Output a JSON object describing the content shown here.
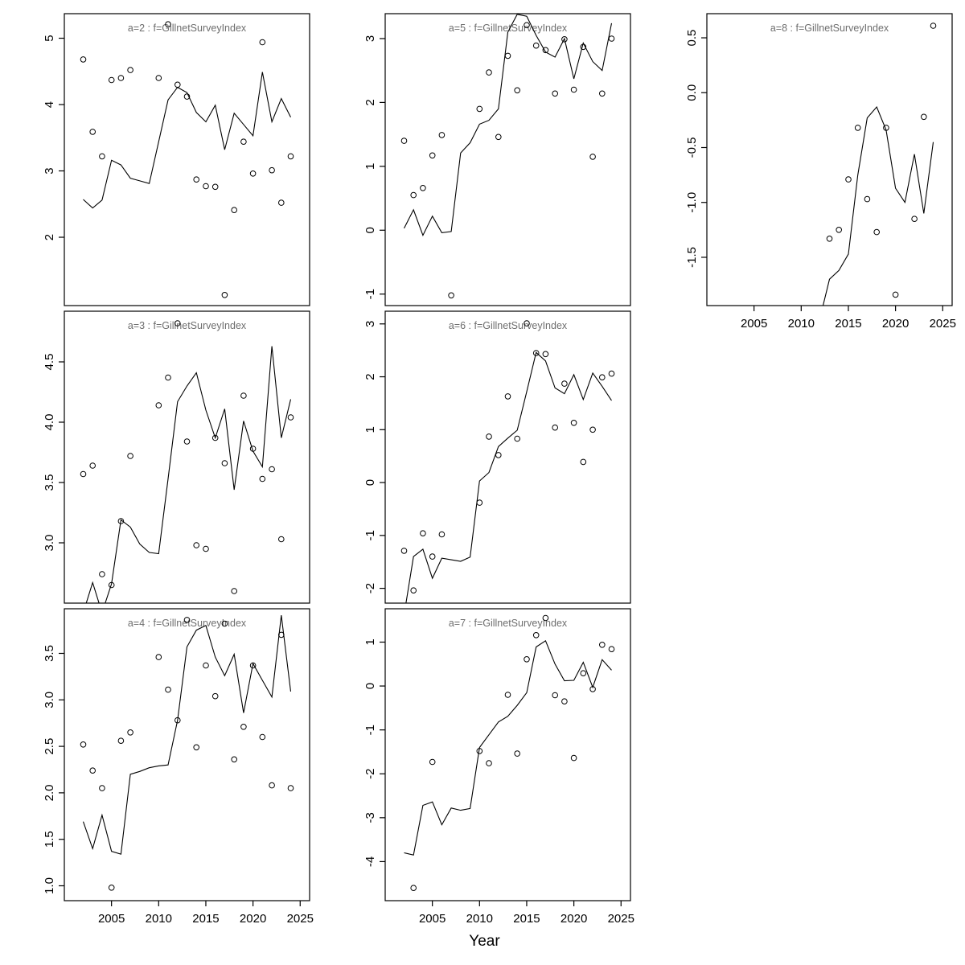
{
  "figure": {
    "xlabel": "Year",
    "background": "#ffffff",
    "line_color": "#000000",
    "point_color": "#000000",
    "title_color": "#6e6e6e",
    "axis_color": "#000000",
    "xlim": [
      2000,
      2026
    ],
    "x_ticks": [
      2005,
      2010,
      2015,
      2020,
      2025
    ],
    "x_tick_labels": [
      "2005",
      "2010",
      "2015",
      "2020",
      "2025"
    ],
    "legend": "none",
    "grid": "off"
  },
  "chart_data": [
    {
      "type": "line",
      "id": "a2",
      "row": 0,
      "col": 0,
      "title": "a=2  :  f=GillnetSurveyIndex",
      "ylim": [
        0.97,
        5.37
      ],
      "yticks": [
        2,
        3,
        4,
        5
      ],
      "ytick_labels": [
        "2",
        "3",
        "4",
        "5"
      ],
      "show_x_axis": false,
      "series": [
        {
          "name": "fitted-line",
          "style": "line",
          "x": [
            2002,
            2003,
            2004,
            2005,
            2006,
            2007,
            2008,
            2009,
            2010,
            2011,
            2012,
            2013,
            2014,
            2015,
            2016,
            2017,
            2018,
            2019,
            2020,
            2021,
            2022,
            2023,
            2024
          ],
          "y": [
            2.57,
            2.44,
            2.56,
            3.16,
            3.09,
            2.89,
            2.85,
            2.81,
            3.44,
            4.07,
            4.26,
            4.18,
            3.88,
            3.74,
            3.99,
            3.32,
            3.87,
            3.7,
            3.53,
            4.49,
            3.74,
            4.09,
            3.81
          ]
        },
        {
          "name": "observed-points",
          "style": "points",
          "x": [
            2002,
            2003,
            2004,
            2005,
            2006,
            2007,
            2010,
            2011,
            2012,
            2013,
            2014,
            2015,
            2016,
            2017,
            2018,
            2019,
            2020,
            2021,
            2022,
            2023,
            2024
          ],
          "y": [
            4.68,
            3.59,
            3.22,
            4.37,
            4.4,
            4.52,
            4.4,
            5.21,
            4.3,
            4.12,
            2.87,
            2.77,
            2.76,
            1.13,
            2.41,
            3.44,
            2.96,
            4.94,
            3.01,
            2.52,
            3.22
          ]
        }
      ]
    },
    {
      "type": "line",
      "id": "a5",
      "row": 0,
      "col": 1,
      "title": "a=5  :  f=GillnetSurveyIndex",
      "ylim": [
        -1.18,
        3.39
      ],
      "yticks": [
        -1,
        0,
        1,
        2,
        3
      ],
      "ytick_labels": [
        "-1",
        "0",
        "1",
        "2",
        "3"
      ],
      "show_x_axis": false,
      "series": [
        {
          "name": "fitted-line",
          "style": "line",
          "x": [
            2002,
            2003,
            2004,
            2005,
            2006,
            2007,
            2008,
            2009,
            2010,
            2011,
            2012,
            2013,
            2014,
            2015,
            2016,
            2017,
            2018,
            2019,
            2020,
            2021,
            2022,
            2023,
            2024
          ],
          "y": [
            0.03,
            0.32,
            -0.08,
            0.22,
            -0.04,
            -0.02,
            1.21,
            1.37,
            1.66,
            1.72,
            1.9,
            3.1,
            3.38,
            3.35,
            3.05,
            2.79,
            2.71,
            3.0,
            2.37,
            2.93,
            2.64,
            2.5,
            3.24
          ]
        },
        {
          "name": "observed-points",
          "style": "points",
          "x": [
            2002,
            2003,
            2004,
            2005,
            2006,
            2007,
            2010,
            2011,
            2012,
            2013,
            2014,
            2015,
            2016,
            2017,
            2018,
            2019,
            2020,
            2021,
            2022,
            2023,
            2024
          ],
          "y": [
            1.4,
            0.55,
            0.66,
            1.17,
            1.49,
            -1.02,
            1.9,
            2.47,
            1.46,
            2.73,
            2.19,
            3.21,
            2.89,
            2.82,
            2.14,
            2.99,
            2.2,
            2.87,
            1.15,
            2.14,
            3.0
          ]
        }
      ]
    },
    {
      "type": "line",
      "id": "a8",
      "row": 0,
      "col": 2,
      "title": "a=8  :  f=GillnetSurveyIndex",
      "ylim": [
        -1.94,
        0.72
      ],
      "yticks": [
        -1.5,
        -1.0,
        -0.5,
        0.0,
        0.5
      ],
      "ytick_labels": [
        "-1.5",
        "-1.0",
        "-0.5",
        "0.0",
        "0.5"
      ],
      "show_x_axis": true,
      "series": [
        {
          "name": "fitted-line",
          "style": "line",
          "x": [
            2012,
            2013,
            2014,
            2015,
            2016,
            2017,
            2018,
            2019,
            2020,
            2021,
            2022,
            2023,
            2024
          ],
          "y": [
            -2.05,
            -1.7,
            -1.62,
            -1.47,
            -0.75,
            -0.23,
            -0.13,
            -0.34,
            -0.87,
            -1.0,
            -0.56,
            -1.1,
            -0.45
          ]
        },
        {
          "name": "observed-points",
          "style": "points",
          "x": [
            2013,
            2014,
            2015,
            2016,
            2017,
            2018,
            2019,
            2020,
            2022,
            2023,
            2024
          ],
          "y": [
            -1.33,
            -1.25,
            -0.79,
            -0.32,
            -0.97,
            -1.27,
            -0.32,
            -1.84,
            -1.15,
            -0.22,
            0.61
          ]
        }
      ]
    },
    {
      "type": "line",
      "id": "a3",
      "row": 1,
      "col": 0,
      "title": "a=3  :  f=GillnetSurveyIndex",
      "ylim": [
        2.5,
        4.92
      ],
      "yticks": [
        3.0,
        3.5,
        4.0,
        4.5
      ],
      "ytick_labels": [
        "3.0",
        "3.5",
        "4.0",
        "4.5"
      ],
      "show_x_axis": false,
      "series": [
        {
          "name": "fitted-line",
          "style": "line",
          "x": [
            2002,
            2003,
            2004,
            2005,
            2006,
            2007,
            2008,
            2009,
            2010,
            2011,
            2012,
            2013,
            2014,
            2015,
            2016,
            2017,
            2018,
            2019,
            2020,
            2021,
            2022,
            2023,
            2024
          ],
          "y": [
            2.42,
            2.67,
            2.42,
            2.66,
            3.19,
            3.13,
            2.99,
            2.92,
            2.91,
            3.53,
            4.17,
            4.3,
            4.41,
            4.1,
            3.87,
            4.11,
            3.44,
            4.01,
            3.76,
            3.63,
            4.63,
            3.87,
            4.19
          ]
        },
        {
          "name": "observed-points",
          "style": "points",
          "x": [
            2002,
            2003,
            2004,
            2005,
            2006,
            2007,
            2010,
            2011,
            2012,
            2013,
            2014,
            2015,
            2016,
            2017,
            2018,
            2019,
            2020,
            2021,
            2022,
            2023,
            2024
          ],
          "y": [
            3.57,
            3.64,
            2.74,
            2.65,
            3.18,
            3.72,
            4.14,
            4.37,
            4.82,
            3.84,
            2.98,
            2.95,
            3.87,
            3.66,
            2.6,
            4.22,
            3.78,
            3.53,
            3.61,
            3.03,
            4.04
          ]
        }
      ]
    },
    {
      "type": "line",
      "id": "a6",
      "row": 1,
      "col": 1,
      "title": "a=6  :  f=GillnetSurveyIndex",
      "ylim": [
        -2.28,
        3.24
      ],
      "yticks": [
        -2,
        -1,
        0,
        1,
        2,
        3
      ],
      "ytick_labels": [
        "-2",
        "-1",
        "0",
        "1",
        "2",
        "3"
      ],
      "show_x_axis": false,
      "series": [
        {
          "name": "fitted-line",
          "style": "line",
          "x": [
            2002,
            2003,
            2004,
            2005,
            2006,
            2007,
            2008,
            2009,
            2010,
            2011,
            2012,
            2013,
            2014,
            2015,
            2016,
            2017,
            2018,
            2019,
            2020,
            2021,
            2022,
            2023,
            2024
          ],
          "y": [
            -2.5,
            -1.4,
            -1.26,
            -1.81,
            -1.43,
            -1.46,
            -1.49,
            -1.41,
            0.03,
            0.19,
            0.68,
            0.84,
            0.99,
            1.72,
            2.46,
            2.3,
            1.79,
            1.68,
            2.04,
            1.57,
            2.07,
            1.82,
            1.55
          ]
        },
        {
          "name": "observed-points",
          "style": "points",
          "x": [
            2002,
            2003,
            2004,
            2005,
            2006,
            2010,
            2011,
            2012,
            2013,
            2014,
            2015,
            2016,
            2017,
            2018,
            2019,
            2020,
            2021,
            2022,
            2023,
            2024
          ],
          "y": [
            -1.29,
            -2.04,
            -0.96,
            -1.4,
            -0.98,
            -0.38,
            0.87,
            0.52,
            1.63,
            0.83,
            3.01,
            2.45,
            2.43,
            1.04,
            1.87,
            1.13,
            0.39,
            1.0,
            1.99,
            2.06
          ]
        }
      ]
    },
    {
      "type": "line",
      "id": "a4",
      "row": 2,
      "col": 0,
      "title": "a=4  :  f=GillnetSurveyIndex",
      "ylim": [
        0.84,
        3.98
      ],
      "yticks": [
        1.0,
        1.5,
        2.0,
        2.5,
        3.0,
        3.5
      ],
      "ytick_labels": [
        "1.0",
        "1.5",
        "2.0",
        "2.5",
        "3.0",
        "3.5"
      ],
      "show_x_axis": true,
      "series": [
        {
          "name": "fitted-line",
          "style": "line",
          "x": [
            2002,
            2003,
            2004,
            2005,
            2006,
            2007,
            2008,
            2009,
            2010,
            2011,
            2012,
            2013,
            2014,
            2015,
            2016,
            2017,
            2018,
            2019,
            2020,
            2021,
            2022,
            2023,
            2024
          ],
          "y": [
            1.69,
            1.4,
            1.76,
            1.37,
            1.34,
            2.2,
            2.23,
            2.27,
            2.29,
            2.3,
            2.78,
            3.57,
            3.75,
            3.8,
            3.46,
            3.26,
            3.49,
            2.86,
            3.39,
            3.21,
            3.03,
            3.91,
            3.09
          ]
        },
        {
          "name": "observed-points",
          "style": "points",
          "x": [
            2002,
            2003,
            2004,
            2005,
            2006,
            2007,
            2010,
            2011,
            2012,
            2013,
            2014,
            2015,
            2016,
            2017,
            2018,
            2019,
            2020,
            2021,
            2022,
            2023,
            2024
          ],
          "y": [
            2.52,
            2.24,
            2.05,
            0.98,
            2.56,
            2.65,
            3.46,
            3.11,
            2.78,
            3.86,
            2.49,
            3.37,
            3.04,
            3.82,
            2.36,
            2.71,
            3.37,
            2.6,
            2.08,
            3.7,
            2.05
          ]
        }
      ]
    },
    {
      "type": "line",
      "id": "a7",
      "row": 2,
      "col": 1,
      "title": "a=7  :  f=GillnetSurveyIndex",
      "ylim": [
        -4.89,
        1.76
      ],
      "yticks": [
        -4,
        -3,
        -2,
        -1,
        0,
        1
      ],
      "ytick_labels": [
        "-4",
        "-3",
        "-2",
        "-1",
        "0",
        "1"
      ],
      "show_x_axis": true,
      "series": [
        {
          "name": "fitted-line",
          "style": "line",
          "x": [
            2002,
            2003,
            2004,
            2005,
            2006,
            2007,
            2008,
            2009,
            2010,
            2011,
            2012,
            2013,
            2014,
            2015,
            2016,
            2017,
            2018,
            2019,
            2020,
            2021,
            2022,
            2023,
            2024
          ],
          "y": [
            -3.8,
            -3.85,
            -2.72,
            -2.64,
            -3.16,
            -2.78,
            -2.83,
            -2.79,
            -1.4,
            -1.11,
            -0.82,
            -0.69,
            -0.44,
            -0.15,
            0.89,
            1.03,
            0.5,
            0.12,
            0.13,
            0.54,
            -0.03,
            0.6,
            0.36
          ]
        },
        {
          "name": "observed-points",
          "style": "points",
          "x": [
            2003,
            2005,
            2010,
            2011,
            2013,
            2014,
            2015,
            2016,
            2017,
            2018,
            2019,
            2020,
            2021,
            2022,
            2023,
            2024
          ],
          "y": [
            -4.6,
            -1.73,
            -1.48,
            -1.76,
            -0.2,
            -1.54,
            0.61,
            1.16,
            1.55,
            -0.21,
            -0.35,
            -1.64,
            0.29,
            -0.07,
            0.94,
            0.84
          ]
        }
      ]
    }
  ]
}
